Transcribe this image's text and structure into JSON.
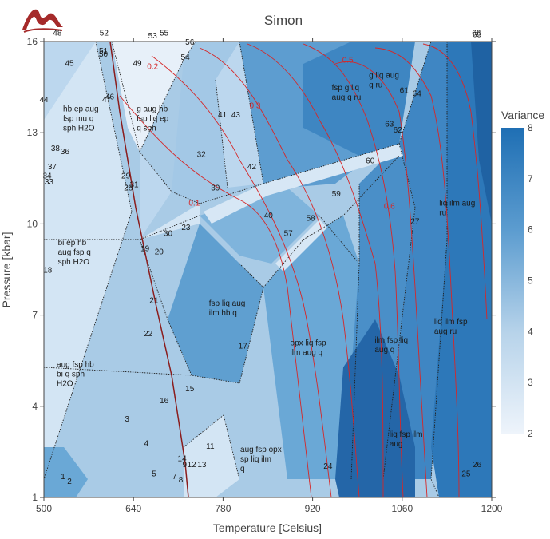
{
  "chart_data": {
    "type": "heatmap",
    "title": "Simon",
    "xlabel": "Temperature [Celsius]",
    "ylabel": "Pressure [kbar]",
    "xlim": [
      500,
      1200
    ],
    "ylim": [
      1,
      16
    ],
    "x_ticks": [
      500,
      640,
      780,
      920,
      1060,
      1200
    ],
    "y_ticks": [
      1,
      4,
      7,
      10,
      13,
      16
    ],
    "colorbar": {
      "title": "Variance",
      "range": [
        2,
        8
      ],
      "ticks": [
        2,
        3,
        4,
        5,
        6,
        7,
        8
      ],
      "low_color": "#eef4fb",
      "high_color": "#1f6fb4"
    },
    "contour_labels": [
      {
        "label": "0.1",
        "x": 735,
        "y": 10.6
      },
      {
        "label": "0.2",
        "x": 670,
        "y": 15.1
      },
      {
        "label": "0.3",
        "x": 830,
        "y": 13.8
      },
      {
        "label": "0.5",
        "x": 975,
        "y": 15.3
      },
      {
        "label": "0.6",
        "x": 1040,
        "y": 10.5
      }
    ],
    "field_numbers": [
      {
        "label": "1",
        "x": 530,
        "y": 1.6
      },
      {
        "label": "2",
        "x": 540,
        "y": 1.45
      },
      {
        "label": "3",
        "x": 630,
        "y": 3.5
      },
      {
        "label": "4",
        "x": 660,
        "y": 2.7
      },
      {
        "label": "5",
        "x": 672,
        "y": 1.7
      },
      {
        "label": "7",
        "x": 704,
        "y": 1.6
      },
      {
        "label": "8",
        "x": 714,
        "y": 1.5
      },
      {
        "label": "9",
        "x": 720,
        "y": 2.0
      },
      {
        "label": "11",
        "x": 760,
        "y": 2.6
      },
      {
        "label": "12",
        "x": 731,
        "y": 2.0
      },
      {
        "label": "13",
        "x": 747,
        "y": 2.0
      },
      {
        "label": "14",
        "x": 716,
        "y": 2.2
      },
      {
        "label": "15",
        "x": 728,
        "y": 4.5
      },
      {
        "label": "16",
        "x": 688,
        "y": 4.1
      },
      {
        "label": "17",
        "x": 811,
        "y": 5.9
      },
      {
        "label": "18",
        "x": 506,
        "y": 8.4
      },
      {
        "label": "19",
        "x": 658,
        "y": 9.1
      },
      {
        "label": "20",
        "x": 680,
        "y": 9.0
      },
      {
        "label": "21",
        "x": 672,
        "y": 7.4
      },
      {
        "label": "22",
        "x": 663,
        "y": 6.3
      },
      {
        "label": "23",
        "x": 722,
        "y": 9.8
      },
      {
        "label": "24",
        "x": 944,
        "y": 1.95
      },
      {
        "label": "25",
        "x": 1160,
        "y": 1.7
      },
      {
        "label": "26",
        "x": 1177,
        "y": 2.0
      },
      {
        "label": "27",
        "x": 1080,
        "y": 10.0
      },
      {
        "label": "28",
        "x": 632,
        "y": 11.1
      },
      {
        "label": "29",
        "x": 628,
        "y": 11.5
      },
      {
        "label": "30",
        "x": 694,
        "y": 9.6
      },
      {
        "label": "31",
        "x": 641,
        "y": 11.2
      },
      {
        "label": "32",
        "x": 746,
        "y": 12.2
      },
      {
        "label": "33",
        "x": 508,
        "y": 11.3
      },
      {
        "label": "34",
        "x": 505,
        "y": 11.5
      },
      {
        "label": "36",
        "x": 533,
        "y": 12.3
      },
      {
        "label": "37",
        "x": 513,
        "y": 11.8
      },
      {
        "label": "38",
        "x": 518,
        "y": 12.4
      },
      {
        "label": "39",
        "x": 768,
        "y": 11.1
      },
      {
        "label": "40",
        "x": 851,
        "y": 10.2
      },
      {
        "label": "41",
        "x": 779,
        "y": 13.5
      },
      {
        "label": "42",
        "x": 825,
        "y": 11.8
      },
      {
        "label": "43",
        "x": 800,
        "y": 13.5
      },
      {
        "label": "44",
        "x": 500,
        "y": 14.0
      },
      {
        "label": "45",
        "x": 540,
        "y": 15.2
      },
      {
        "label": "46",
        "x": 603,
        "y": 14.1
      },
      {
        "label": "47",
        "x": 598,
        "y": 14.0
      },
      {
        "label": "48",
        "x": 521,
        "y": 16.2
      },
      {
        "label": "49",
        "x": 646,
        "y": 15.2
      },
      {
        "label": "50",
        "x": 593,
        "y": 15.5
      },
      {
        "label": "51",
        "x": 593,
        "y": 15.6
      },
      {
        "label": "52",
        "x": 594,
        "y": 16.2
      },
      {
        "label": "53",
        "x": 670,
        "y": 16.1
      },
      {
        "label": "54",
        "x": 721,
        "y": 15.4
      },
      {
        "label": "55",
        "x": 688,
        "y": 16.2
      },
      {
        "label": "56",
        "x": 728,
        "y": 15.9
      },
      {
        "label": "57",
        "x": 882,
        "y": 9.6
      },
      {
        "label": "58",
        "x": 917,
        "y": 10.1
      },
      {
        "label": "59",
        "x": 957,
        "y": 10.9
      },
      {
        "label": "60",
        "x": 1010,
        "y": 12.0
      },
      {
        "label": "61",
        "x": 1063,
        "y": 14.3
      },
      {
        "label": "62",
        "x": 1053,
        "y": 13.0
      },
      {
        "label": "63",
        "x": 1040,
        "y": 13.2
      },
      {
        "label": "64",
        "x": 1083,
        "y": 14.2
      },
      {
        "label": "65",
        "x": 1177,
        "y": 16.15
      },
      {
        "label": "66",
        "x": 1176,
        "y": 16.2
      }
    ],
    "assemblage_labels": [
      {
        "lines": [
          "hb ep aug",
          "fsp mu q",
          "sph H2O"
        ],
        "x": 530,
        "y": 13.7
      },
      {
        "lines": [
          "g aug hb",
          "fsp liq ep",
          "q sph"
        ],
        "x": 645,
        "y": 13.7
      },
      {
        "lines": [
          "fsp g liq",
          "aug q ru"
        ],
        "x": 950,
        "y": 14.4
      },
      {
        "lines": [
          "g liq aug",
          "q ru"
        ],
        "x": 1008,
        "y": 14.8
      },
      {
        "lines": [
          "liq ilm aug",
          "ru"
        ],
        "x": 1118,
        "y": 10.6
      },
      {
        "lines": [
          "bi ep hb",
          "aug fsp q",
          "sph H2O"
        ],
        "x": 522,
        "y": 9.3
      },
      {
        "lines": [
          "fsp liq aug",
          "ilm hb q"
        ],
        "x": 758,
        "y": 7.3
      },
      {
        "lines": [
          "liq ilm fsp",
          "aug ru"
        ],
        "x": 1110,
        "y": 6.7
      },
      {
        "lines": [
          "opx liq fsp",
          "ilm aug q"
        ],
        "x": 885,
        "y": 6.0
      },
      {
        "lines": [
          "ilm fsp liq",
          "aug q"
        ],
        "x": 1017,
        "y": 6.1
      },
      {
        "lines": [
          "aug fsp hb",
          "bi q sph",
          "H2O"
        ],
        "x": 520,
        "y": 5.3
      },
      {
        "lines": [
          "liq fsp ilm",
          "aug"
        ],
        "x": 1040,
        "y": 3.0
      },
      {
        "lines": [
          "aug fsp opx",
          "sp liq ilm",
          "q"
        ],
        "x": 807,
        "y": 2.5
      }
    ]
  }
}
